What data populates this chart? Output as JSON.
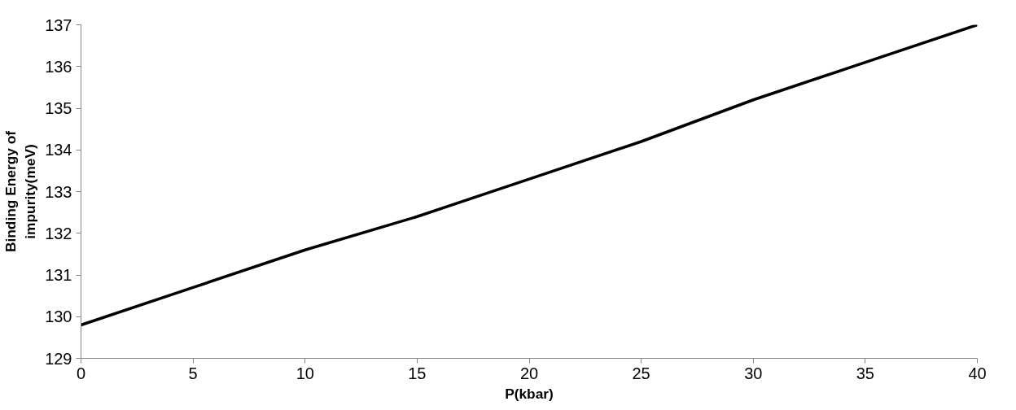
{
  "chart_data": {
    "type": "line",
    "xlabel": "P(kbar)",
    "ylabel": "Binding Energy of\nimpurity(meV)",
    "x": [
      0,
      5,
      10,
      15,
      20,
      25,
      30,
      35,
      40
    ],
    "series": [
      {
        "color": "#000000",
        "values": [
          129.8,
          130.7,
          131.6,
          132.4,
          133.3,
          134.2,
          135.2,
          136.1,
          137.0
        ]
      }
    ],
    "xlim": [
      0,
      40
    ],
    "ylim": [
      129,
      137
    ],
    "xticks": [
      0,
      5,
      10,
      15,
      20,
      25,
      30,
      35,
      40
    ],
    "yticks": [
      129,
      130,
      131,
      132,
      133,
      134,
      135,
      136,
      137
    ],
    "grid": false,
    "marker": "none",
    "line_style": "solid"
  }
}
